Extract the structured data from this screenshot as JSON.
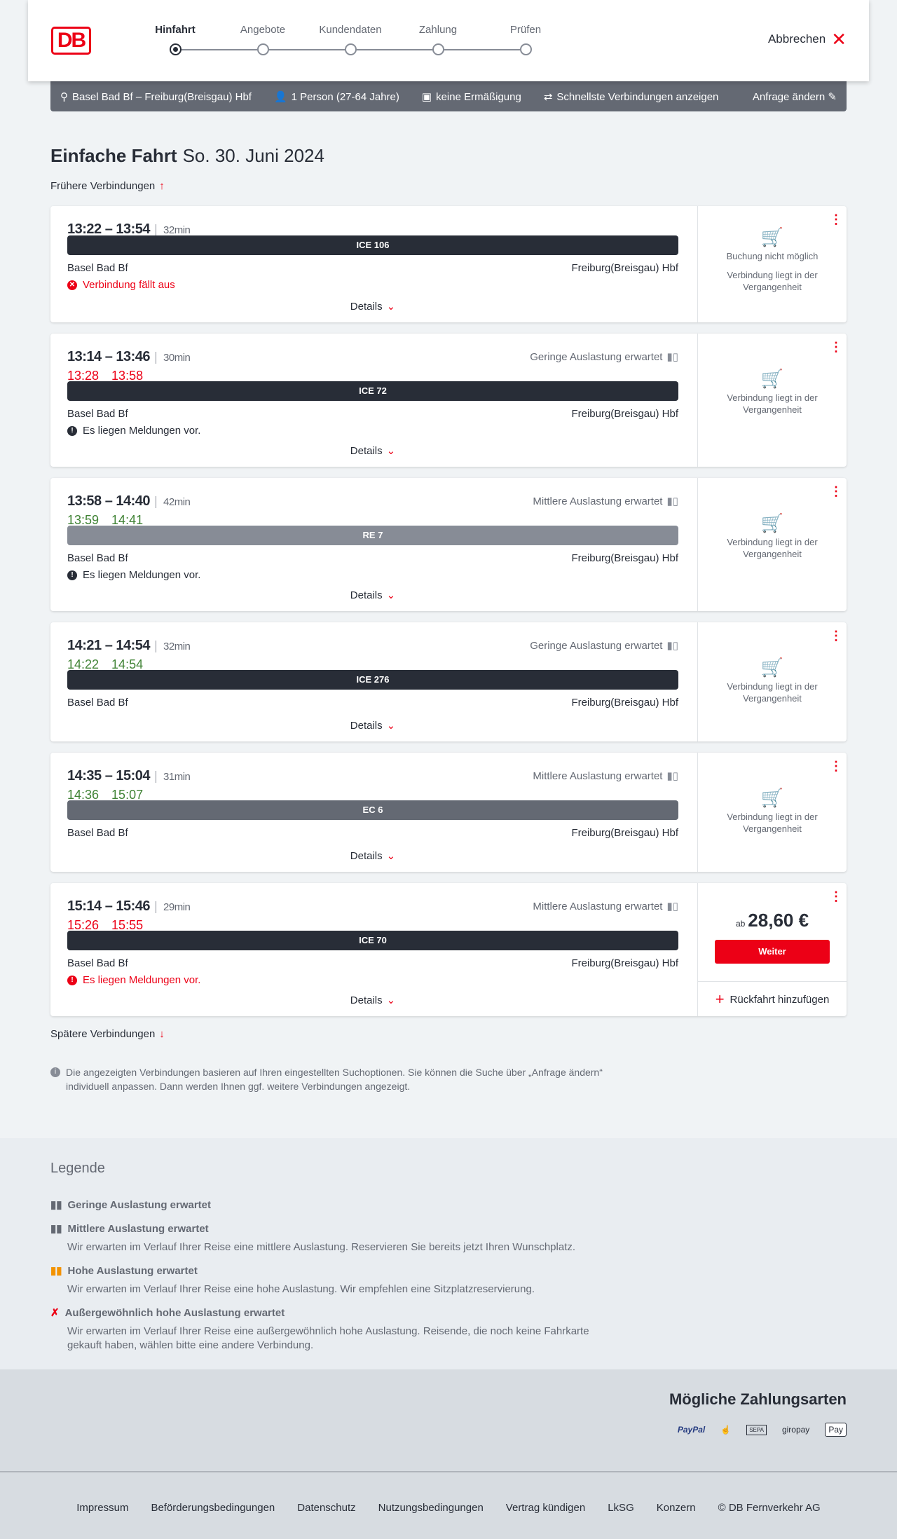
{
  "header": {
    "logo": "DB",
    "steps": [
      "Hinfahrt",
      "Angebote",
      "Kundendaten",
      "Zahlung",
      "Prüfen"
    ],
    "active_step": 0,
    "cancel": "Abbrechen"
  },
  "summary": {
    "route": "Basel Bad Bf – Freiburg(Breisgau) Hbf",
    "persons": "1 Person (27-64 Jahre)",
    "discount": "keine Ermäßigung",
    "fastest": "Schnellste Verbindungen anzeigen",
    "edit": "Anfrage ändern"
  },
  "page": {
    "title": "Einfache Fahrt",
    "date": "So. 30. Juni 2024",
    "earlier": "Frühere Verbindungen",
    "later": "Spätere Verbindungen",
    "info": "Die angezeigten Verbindungen basieren auf Ihren eingestellten Suchoptionen. Sie können die Suche über „Anfrage ändern“ individuell anpassen. Dann werden Ihnen ggf. weitere Verbindungen angezeigt."
  },
  "common": {
    "from": "Basel Bad Bf",
    "to": "Freiburg(Breisgau) Hbf",
    "details": "Details",
    "past": "Verbindung liegt in der Vergangenheit",
    "no_booking": "Buchung nicht möglich"
  },
  "connections": [
    {
      "times": "13:22 – 13:54",
      "duration": "32min",
      "train": "ICE 106",
      "bar": "#282d37",
      "message": "Verbindung fällt aus",
      "message_color": "#ec0016"
    },
    {
      "times": "13:14 – 13:46",
      "duration": "30min",
      "load": "Geringe Auslastung erwartet",
      "rt_dep": "13:28",
      "rt_arr": "13:58",
      "rt_color": "#ec0016",
      "train": "ICE 72",
      "bar": "#282d37",
      "message": "Es liegen Meldungen vor.",
      "message_color": "#282d37"
    },
    {
      "times": "13:58 – 14:40",
      "duration": "42min",
      "load": "Mittlere Auslastung erwartet",
      "rt_dep": "13:59",
      "rt_arr": "14:41",
      "rt_color": "#408335",
      "train": "RE 7",
      "bar": "#878c96",
      "message": "Es liegen Meldungen vor.",
      "message_color": "#282d37"
    },
    {
      "times": "14:21 – 14:54",
      "duration": "32min",
      "load": "Geringe Auslastung erwartet",
      "rt_dep": "14:22",
      "rt_arr": "14:54",
      "rt_color": "#408335",
      "train": "ICE 276",
      "bar": "#282d37"
    },
    {
      "times": "14:35 – 15:04",
      "duration": "31min",
      "load": "Mittlere Auslastung erwartet",
      "rt_dep": "14:36",
      "rt_arr": "15:07",
      "rt_color": "#408335",
      "train": "EC 6",
      "bar": "#646973"
    },
    {
      "times": "15:14 – 15:46",
      "duration": "29min",
      "load": "Mittlere Auslastung erwartet",
      "rt_dep": "15:26",
      "rt_arr": "15:55",
      "rt_color": "#ec0016",
      "train": "ICE 70",
      "bar": "#282d37",
      "message": "Es liegen Meldungen vor.",
      "message_color": "#ec0016",
      "price_prefix": "ab",
      "price": "28,60 €",
      "continue": "Weiter",
      "return": "Rückfahrt hinzufügen"
    }
  ],
  "legend": {
    "title": "Legende",
    "items": [
      {
        "title": "Geringe Auslastung erwartet",
        "color": "#646973"
      },
      {
        "title": "Mittlere Auslastung erwartet",
        "text": "Wir erwarten im Verlauf Ihrer Reise eine mittlere Auslastung. Reservieren Sie bereits jetzt Ihren Wunschplatz.",
        "color": "#646973"
      },
      {
        "title": "Hohe Auslastung erwartet",
        "text": "Wir erwarten im Verlauf Ihrer Reise eine hohe Auslastung. Wir empfehlen eine Sitzplatzreservierung.",
        "color": "#f39200"
      },
      {
        "title": "Außergewöhnlich hohe Auslastung erwartet",
        "text": "Wir erwarten im Verlauf Ihrer Reise eine außergewöhnlich hohe Auslastung. Reisende, die noch keine Fahrkarte gekauft haben, wählen bitte eine andere Verbindung.",
        "color": "#ec0016"
      }
    ]
  },
  "payment": {
    "title": "Mögliche Zahlungsarten",
    "methods": [
      "PayPal",
      "giropay",
      "Pay"
    ]
  },
  "footer": [
    "Impressum",
    "Beförderungsbedingungen",
    "Datenschutz",
    "Nutzungsbedingungen",
    "Vertrag kündigen",
    "LkSG",
    "Konzern",
    "© DB Fernverkehr AG"
  ]
}
